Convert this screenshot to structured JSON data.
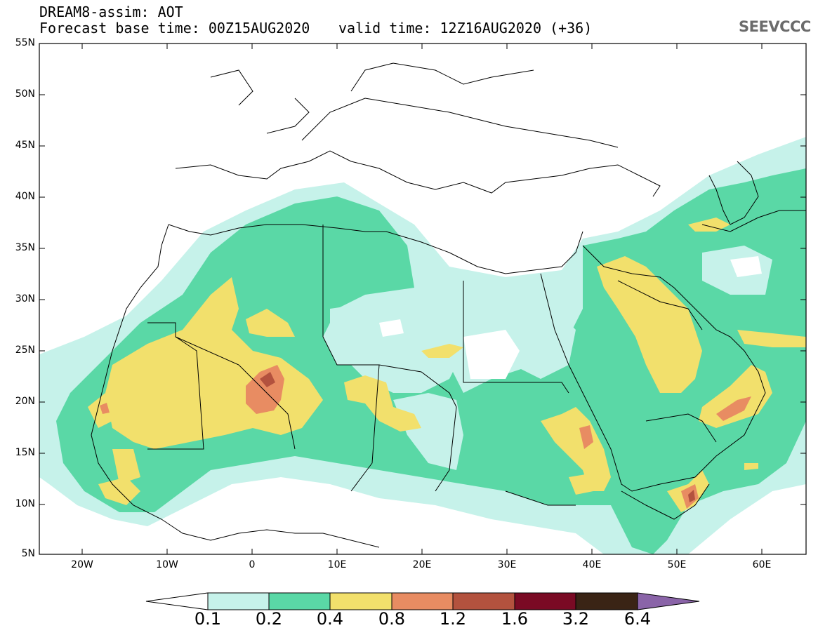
{
  "header": {
    "line1": "DREAM8-assim: AOT",
    "line2": "Forecast base time: 00Z15AUG2020",
    "valid": "valid time: 12Z16AUG2020 (+36)",
    "logo_text": "SEEVCCC"
  },
  "map": {
    "lat_labels": [
      "55N",
      "50N",
      "45N",
      "40N",
      "35N",
      "30N",
      "25N",
      "20N",
      "15N",
      "10N",
      "5N"
    ],
    "lon_labels": [
      "20W",
      "10W",
      "0",
      "10E",
      "20E",
      "30E",
      "40E",
      "50E",
      "60E"
    ],
    "extent": {
      "lon": [
        -25,
        65
      ],
      "lat": [
        5,
        55
      ]
    },
    "variable": "Aerosol optical thickness"
  },
  "colorbar": {
    "levels": [
      "0.1",
      "0.2",
      "0.4",
      "0.8",
      "1.2",
      "1.6",
      "3.2",
      "6.4"
    ],
    "colors": [
      "#c6f2ea",
      "#5ad8a6",
      "#f2e06c",
      "#e88c62",
      "#b3523e",
      "#7a0a24",
      "#3a2415",
      "#8a64a8"
    ]
  }
}
